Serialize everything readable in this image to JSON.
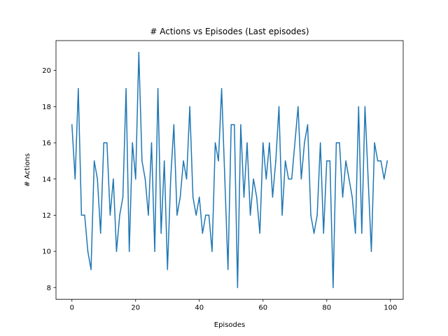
{
  "chart_data": {
    "type": "line",
    "title": "# Actions vs Episodes (Last episodes)",
    "xlabel": "Episodes",
    "ylabel": "# Actions",
    "xlim": [
      -5,
      104
    ],
    "ylim": [
      7.35,
      21.65
    ],
    "xticks": [
      0,
      20,
      40,
      60,
      80,
      100
    ],
    "yticks": [
      8,
      10,
      12,
      14,
      16,
      18,
      20
    ],
    "grid": false,
    "series": [
      {
        "color": "#1f77b4",
        "x": [
          0,
          1,
          2,
          3,
          4,
          5,
          6,
          7,
          8,
          9,
          10,
          11,
          12,
          13,
          14,
          15,
          16,
          17,
          18,
          19,
          20,
          21,
          22,
          23,
          24,
          25,
          26,
          27,
          28,
          29,
          30,
          31,
          32,
          33,
          34,
          35,
          36,
          37,
          38,
          39,
          40,
          41,
          42,
          43,
          44,
          45,
          46,
          47,
          48,
          49,
          50,
          51,
          52,
          53,
          54,
          55,
          56,
          57,
          58,
          59,
          60,
          61,
          62,
          63,
          64,
          65,
          66,
          67,
          68,
          69,
          70,
          71,
          72,
          73,
          74,
          75,
          76,
          77,
          78,
          79,
          80,
          81,
          82,
          83,
          84,
          85,
          86,
          87,
          88,
          89,
          90,
          91,
          92,
          93,
          94,
          95,
          96,
          97,
          98,
          99
        ],
        "y": [
          17,
          14,
          19,
          12,
          12,
          10,
          9,
          15,
          14,
          11,
          16,
          16,
          12,
          14,
          10,
          12,
          13,
          19,
          10,
          16,
          14,
          21,
          15,
          14,
          12,
          16,
          10,
          19,
          11,
          15,
          9,
          14,
          17,
          12,
          13,
          15,
          14,
          18,
          13,
          12,
          13,
          11,
          12,
          12,
          10,
          16,
          15,
          19,
          14,
          9,
          17,
          17,
          8,
          17,
          13,
          16,
          12,
          14,
          13,
          11,
          16,
          14,
          16,
          13,
          15,
          18,
          12,
          15,
          14,
          14,
          16,
          18,
          14,
          16,
          17,
          12,
          11,
          12,
          16,
          11,
          15,
          15,
          8,
          16,
          16,
          13,
          15,
          14,
          13,
          11,
          18,
          11,
          18,
          14,
          10,
          16,
          15,
          15,
          14,
          15
        ]
      }
    ]
  }
}
